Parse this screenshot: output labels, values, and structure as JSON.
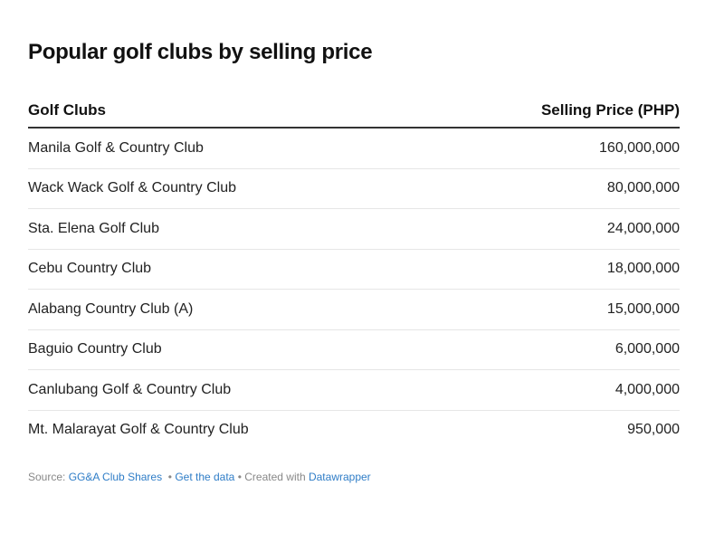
{
  "chart_data": {
    "type": "table",
    "title": "Popular golf clubs by selling price",
    "columns": [
      "Golf Clubs",
      "Selling Price (PHP)"
    ],
    "rows": [
      [
        "Manila Golf & Country Club",
        "160,000,000"
      ],
      [
        "Wack Wack Golf & Country Club",
        "80,000,000"
      ],
      [
        "Sta. Elena Golf Club",
        "24,000,000"
      ],
      [
        "Cebu Country Club",
        "18,000,000"
      ],
      [
        "Alabang Country Club (A)",
        "15,000,000"
      ],
      [
        "Baguio Country Club",
        "6,000,000"
      ],
      [
        "Canlubang Golf & Country Club",
        "4,000,000"
      ],
      [
        "Mt. Malarayat Golf & Country Club",
        "950,000"
      ]
    ]
  },
  "footer": {
    "source_label": "Source:",
    "source_link": "GG&A Club Shares",
    "sep1": "•",
    "get_data": "Get the data",
    "sep2": "•",
    "created_with": "Created with",
    "tool_link": "Datawrapper"
  },
  "colors": {
    "link": "#2f7dc7",
    "text": "#1d1d1d",
    "muted": "#888888"
  }
}
